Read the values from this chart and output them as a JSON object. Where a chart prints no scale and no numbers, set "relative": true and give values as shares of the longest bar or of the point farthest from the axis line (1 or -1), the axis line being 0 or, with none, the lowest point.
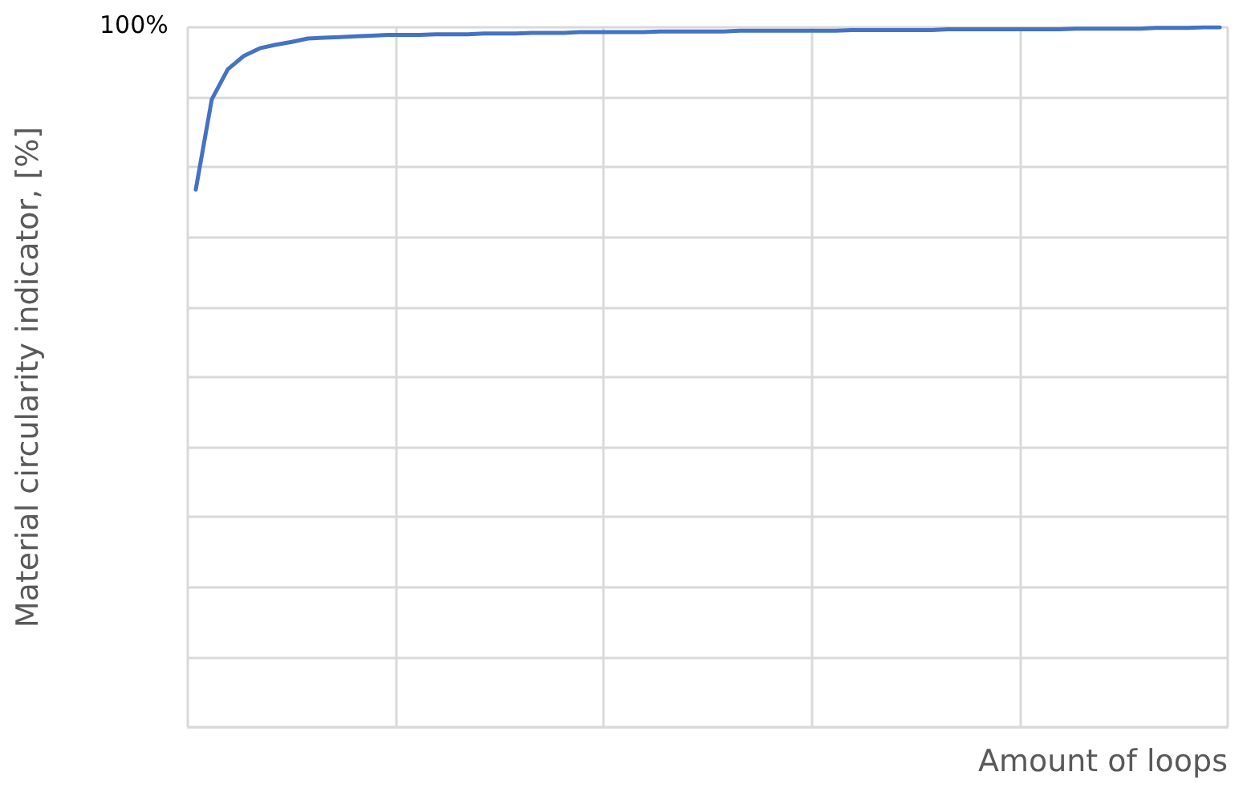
{
  "chart_data": {
    "type": "line",
    "relative": true,
    "grid": true,
    "marker": "none",
    "line_style": "solid",
    "xlabel": "Amount of loops",
    "ylabel": "Material circularity indicator, [%]",
    "annotations": [
      "100%"
    ],
    "categories": [
      null,
      null,
      null,
      null,
      null,
      null,
      null,
      null,
      null,
      null,
      null,
      null,
      null,
      null,
      null,
      null,
      null,
      null,
      null,
      null,
      null,
      null,
      null,
      null,
      null,
      null,
      null,
      null,
      null,
      null,
      null,
      null,
      null,
      null,
      null,
      null,
      null,
      null,
      null,
      null,
      null,
      null,
      null,
      null,
      null,
      null,
      null,
      null,
      null,
      null,
      null,
      null,
      null,
      null,
      null,
      null,
      null,
      null,
      null,
      null,
      null,
      null,
      null,
      null,
      null
    ],
    "series": [
      {
        "color": "#4472c4",
        "values": [
          0.768,
          0.897,
          0.94,
          0.959,
          0.97,
          0.975,
          0.979,
          0.984,
          0.985,
          0.986,
          0.987,
          0.988,
          0.989,
          0.989,
          0.989,
          0.99,
          0.99,
          0.99,
          0.991,
          0.991,
          0.991,
          0.992,
          0.992,
          0.992,
          0.993,
          0.993,
          0.993,
          0.993,
          0.993,
          0.994,
          0.994,
          0.994,
          0.994,
          0.994,
          0.995,
          0.995,
          0.995,
          0.995,
          0.995,
          0.995,
          0.995,
          0.996,
          0.996,
          0.996,
          0.996,
          0.996,
          0.996,
          0.997,
          0.997,
          0.997,
          0.997,
          0.997,
          0.997,
          0.997,
          0.997,
          0.998,
          0.998,
          0.998,
          0.998,
          0.998,
          0.999,
          0.999,
          0.999,
          1,
          1
        ]
      }
    ]
  }
}
